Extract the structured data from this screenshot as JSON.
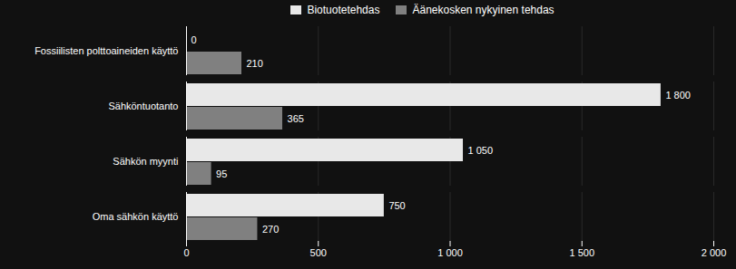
{
  "chart_data": {
    "type": "bar",
    "orientation": "horizontal",
    "categories": [
      "Oma sähkön käyttö",
      "Sähkön myynti",
      "Sähköntuotanto",
      "Fossiilisten polttoaineiden käyttö"
    ],
    "series": [
      {
        "name": "Biotuotetehdas",
        "color": "#e8e8e8",
        "values": [
          750,
          1050,
          1800,
          0
        ],
        "value_labels": [
          "750",
          "1 050",
          "1 800",
          "0"
        ]
      },
      {
        "name": "Äänekosken nykyinen tehdas",
        "color": "#808080",
        "values": [
          270,
          95,
          365,
          210
        ]
      }
    ],
    "xlim": [
      0,
      2000
    ],
    "xticks": [
      0,
      500,
      {
        "value": 1000,
        "label": "1 000"
      },
      {
        "value": 1500,
        "label": "1 500"
      },
      {
        "value": 2000,
        "label": "2 000"
      }
    ],
    "grid": true,
    "legend": "top",
    "data_labels": true
  }
}
